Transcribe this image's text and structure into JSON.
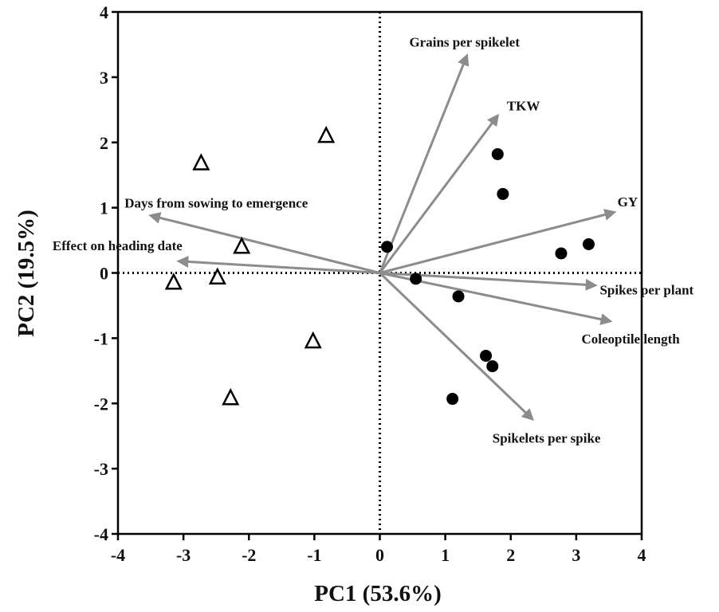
{
  "chart_data": {
    "type": "scatter",
    "title": "",
    "xlabel": "PC1 (53.6%)",
    "ylabel": "PC2 (19.5%)",
    "xlim": [
      -4,
      4
    ],
    "ylim": [
      -4,
      4
    ],
    "x_ticks": [
      "-4",
      "-3",
      "-2",
      "-1",
      "0",
      "1",
      "2",
      "3",
      "4"
    ],
    "y_ticks": [
      "4",
      "3",
      "2",
      "1",
      "0",
      "-1",
      "-2",
      "-3",
      "-4"
    ],
    "grid": false,
    "reference_lines": {
      "x": 0,
      "y": 0,
      "style": "dotted"
    },
    "colors": {
      "vectors": "#8c8c8c",
      "points": "#000000",
      "axes": "#000000"
    },
    "series": [
      {
        "marker": "open-triangle",
        "points": [
          {
            "x": -0.82,
            "y": 2.1
          },
          {
            "x": -2.73,
            "y": 1.68
          },
          {
            "x": -2.11,
            "y": 0.4
          },
          {
            "x": -3.15,
            "y": -0.15
          },
          {
            "x": -2.48,
            "y": -0.07
          },
          {
            "x": -1.02,
            "y": -1.05
          },
          {
            "x": -2.28,
            "y": -1.92
          }
        ]
      },
      {
        "marker": "filled-circle",
        "points": [
          {
            "x": 1.8,
            "y": 1.82
          },
          {
            "x": 1.88,
            "y": 1.21
          },
          {
            "x": 3.19,
            "y": 0.44
          },
          {
            "x": 2.77,
            "y": 0.3
          },
          {
            "x": 0.11,
            "y": 0.4
          },
          {
            "x": 0.55,
            "y": -0.09
          },
          {
            "x": 1.2,
            "y": -0.36
          },
          {
            "x": 1.62,
            "y": -1.27
          },
          {
            "x": 1.72,
            "y": -1.43
          },
          {
            "x": 1.11,
            "y": -1.93
          }
        ]
      }
    ],
    "vectors": [
      {
        "name": "Grains per spikelet",
        "x": 1.33,
        "y": 3.33,
        "label_x": 0.45,
        "label_y": 3.47,
        "anchor": "start"
      },
      {
        "name": "TKW",
        "x": 1.8,
        "y": 2.41,
        "label_x": 1.94,
        "label_y": 2.49,
        "anchor": "start"
      },
      {
        "name": "GY",
        "x": 3.58,
        "y": 0.93,
        "label_x": 3.63,
        "label_y": 1.02,
        "anchor": "start"
      },
      {
        "name": "Days from sowing to emergence",
        "x": -3.5,
        "y": 0.88,
        "label_x": -3.9,
        "label_y": 1.0,
        "anchor": "start"
      },
      {
        "name": "Effect on heading date",
        "x": -3.07,
        "y": 0.18,
        "label_x": -5.0,
        "label_y": 0.35,
        "anchor": "start"
      },
      {
        "name": "Spikes per plant",
        "x": 3.29,
        "y": -0.19,
        "label_x": 3.36,
        "label_y": -0.33,
        "anchor": "start"
      },
      {
        "name": "Coleoptile length",
        "x": 3.52,
        "y": -0.74,
        "label_x": 3.08,
        "label_y": -1.08,
        "anchor": "start"
      },
      {
        "name": "Spikelets per spike",
        "x": 2.33,
        "y": -2.24,
        "label_x": 1.72,
        "label_y": -2.6,
        "anchor": "start"
      }
    ]
  }
}
